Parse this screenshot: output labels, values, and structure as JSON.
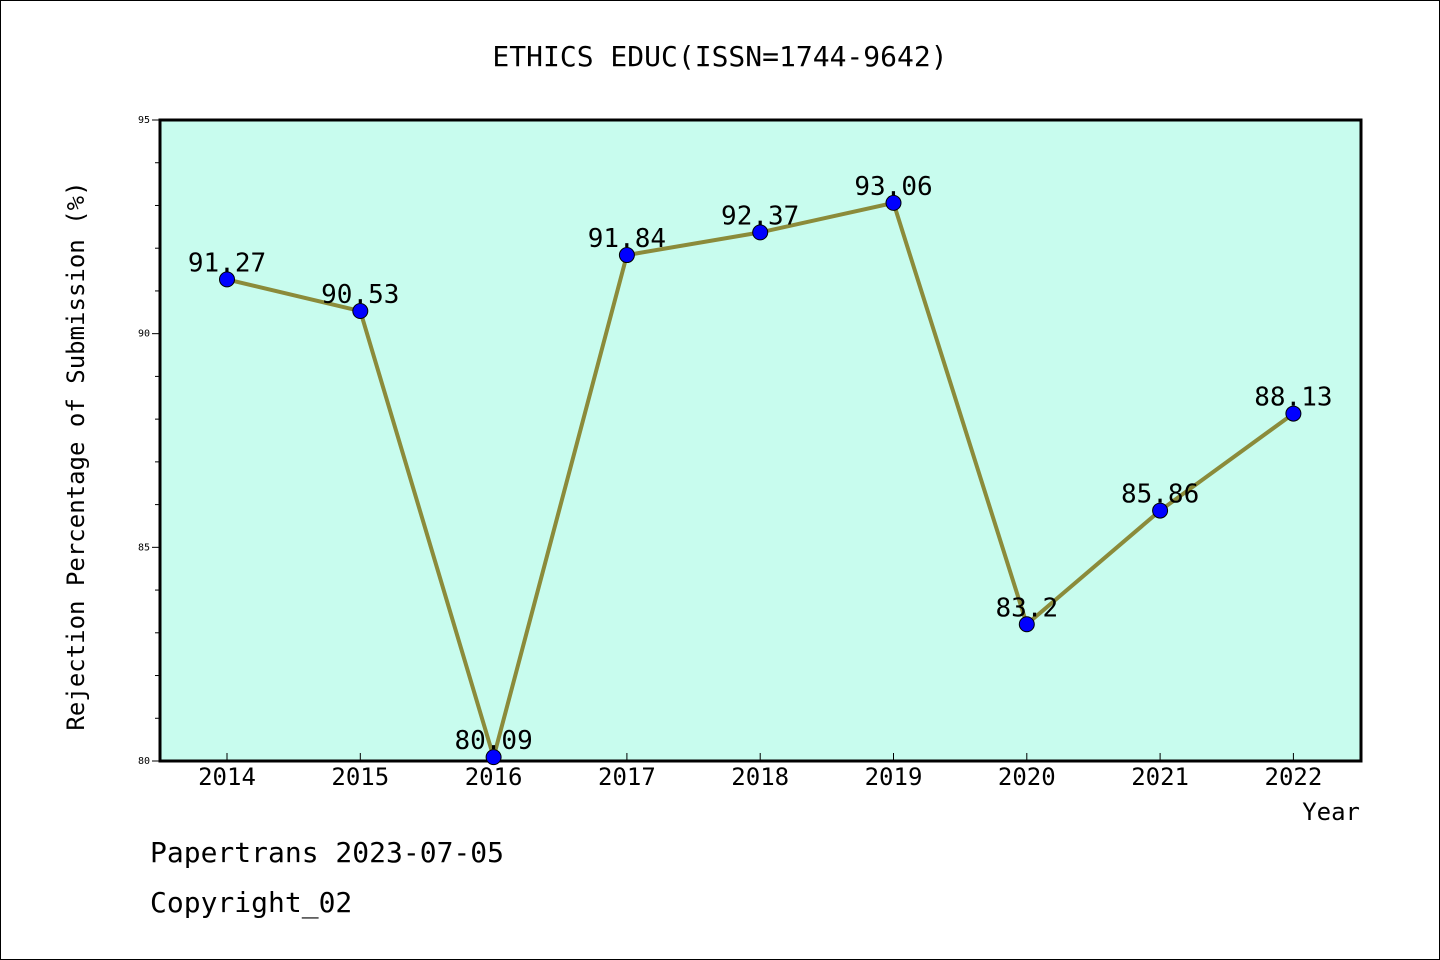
{
  "chart_data": {
    "type": "line",
    "title": "ETHICS EDUC(ISSN=1744-9642)",
    "xlabel": "Year",
    "ylabel": "Rejection Percentage of Submission (%)",
    "categories": [
      "2014",
      "2015",
      "2016",
      "2017",
      "2018",
      "2019",
      "2020",
      "2021",
      "2022"
    ],
    "series": [
      {
        "values": [
          91.27,
          90.53,
          80.09,
          91.84,
          92.37,
          93.06,
          83.2,
          85.86,
          88.13
        ],
        "labels": [
          "91.27",
          "90.53",
          "80.09",
          "91.84",
          "92.37",
          "93.06",
          "83.2",
          "85.86",
          "88.13"
        ],
        "line_color": "#8b8b3a",
        "marker_color": "#0000ff"
      }
    ],
    "ylim": [
      80,
      95
    ],
    "y_ticks": [
      "80",
      "85",
      "90",
      "95"
    ],
    "y_minor_step": 1,
    "plot_background": "#c8fcee",
    "grid": false
  },
  "footer": {
    "line1": "Papertrans 2023-07-05",
    "line2": "Copyright_02"
  }
}
